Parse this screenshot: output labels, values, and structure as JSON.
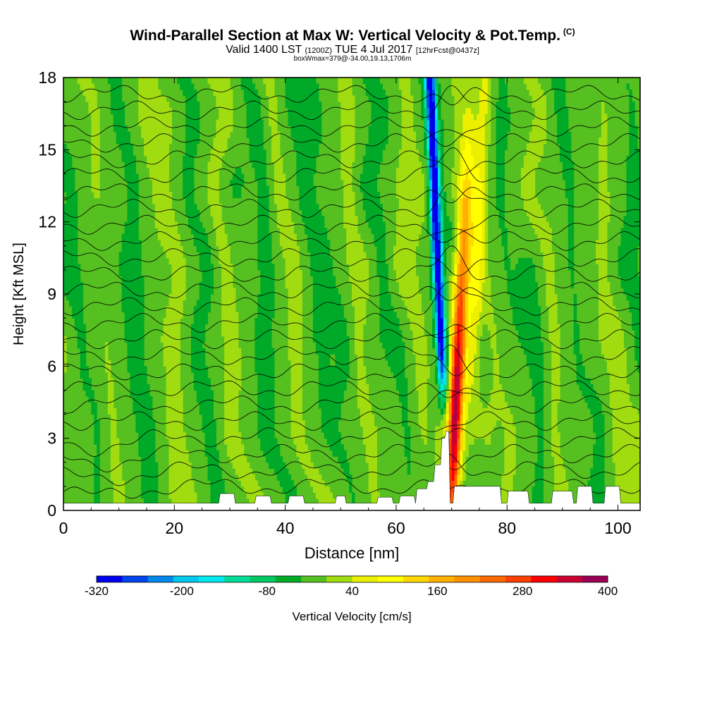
{
  "title": {
    "main": "Wind-Parallel Section at Max W: Vertical Velocity & Pot.Temp.",
    "copyright": "(C)",
    "valid_prefix": "Valid 1400 LST",
    "valid_zulu": "(1200Z)",
    "valid_date": "TUE 4 Jul 2017",
    "forecast": "[12hrFcst@0437z]",
    "box_info": "boxWmax=379@-34.00,19.13,1706m"
  },
  "chart_data": {
    "type": "heatmap",
    "xlabel": "Distance [nm]",
    "ylabel": "Height [Kft MSL]",
    "xlim": [
      0,
      104
    ],
    "ylim": [
      0,
      18
    ],
    "x_ticks": [
      0,
      20,
      40,
      60,
      80,
      100
    ],
    "y_ticks": [
      0,
      3,
      6,
      9,
      12,
      15,
      18
    ],
    "colorbar": {
      "label": "Vertical Velocity [cm/s]",
      "min": -320,
      "max": 400,
      "step": 40,
      "tick_labels": [
        "-320",
        "-200",
        "-80",
        "40",
        "160",
        "280",
        "400"
      ],
      "colors": [
        "#0000ee",
        "#0044ee",
        "#0088ee",
        "#00c8ee",
        "#00e8ee",
        "#00dc98",
        "#00c864",
        "#00aa28",
        "#55c020",
        "#a0dc10",
        "#ecf000",
        "#ffff00",
        "#ffd800",
        "#ffb000",
        "#ff9000",
        "#ff6a00",
        "#ff4000",
        "#ff0000",
        "#cc0030",
        "#990055"
      ]
    },
    "background_w": 20,
    "updraft": {
      "center_x": 70,
      "max_w": 379,
      "max_height_m": 1706
    },
    "theta_contour_count": 25
  }
}
